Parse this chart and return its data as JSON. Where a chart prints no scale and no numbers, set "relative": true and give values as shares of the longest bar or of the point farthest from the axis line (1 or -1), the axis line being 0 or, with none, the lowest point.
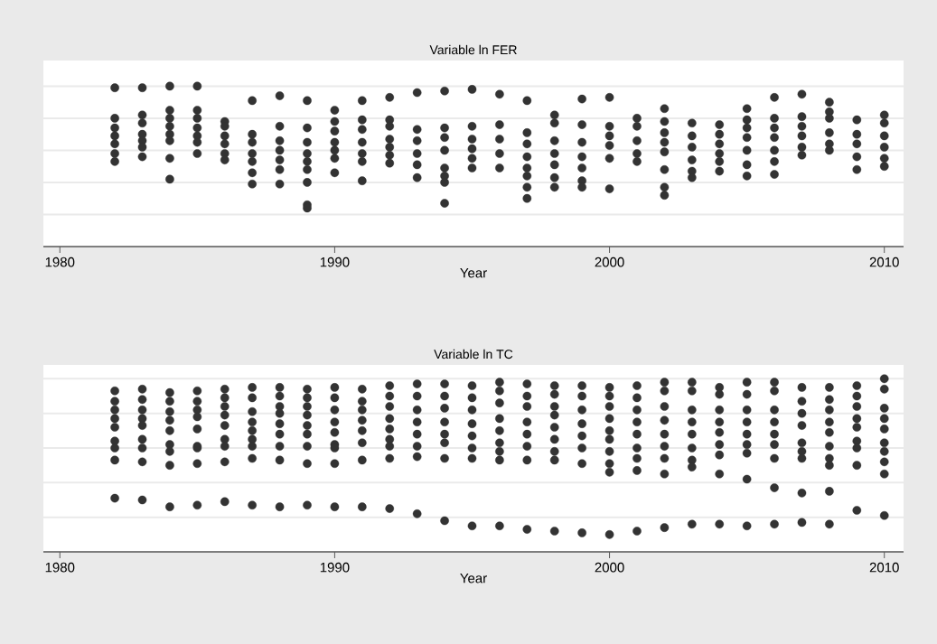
{
  "chart_data": [
    {
      "type": "scatter",
      "title": "Variable ln FER",
      "xlabel": "Year",
      "relative": true,
      "color": "#333333",
      "marker": "circle",
      "grid": "y",
      "xlim": [
        1979.4,
        2010.7
      ],
      "xticks": [
        1980,
        1990,
        2000,
        2010
      ],
      "x": [
        1982,
        1982,
        1982,
        1982,
        1982,
        1982,
        1982,
        1983,
        1983,
        1983,
        1983,
        1983,
        1983,
        1983,
        1984,
        1984,
        1984,
        1984,
        1984,
        1984,
        1984,
        1984,
        1985,
        1985,
        1985,
        1985,
        1985,
        1985,
        1985,
        1986,
        1986,
        1986,
        1986,
        1986,
        1986,
        1987,
        1987,
        1987,
        1987,
        1987,
        1987,
        1987,
        1988,
        1988,
        1988,
        1988,
        1988,
        1988,
        1988,
        1989,
        1989,
        1989,
        1989,
        1989,
        1989,
        1989,
        1989,
        1989,
        1990,
        1990,
        1990,
        1990,
        1990,
        1990,
        1990,
        1991,
        1991,
        1991,
        1991,
        1991,
        1991,
        1991,
        1992,
        1992,
        1992,
        1992,
        1992,
        1992,
        1992,
        1993,
        1993,
        1993,
        1993,
        1993,
        1993,
        1994,
        1994,
        1994,
        1994,
        1994,
        1994,
        1994,
        1994,
        1995,
        1995,
        1995,
        1995,
        1995,
        1995,
        1996,
        1996,
        1996,
        1996,
        1996,
        1997,
        1997,
        1997,
        1997,
        1997,
        1997,
        1997,
        1997,
        1998,
        1998,
        1998,
        1998,
        1998,
        1998,
        1998,
        1999,
        1999,
        1999,
        1999,
        1999,
        1999,
        1999,
        2000,
        2000,
        2000,
        2000,
        2000,
        2000,
        2001,
        2001,
        2001,
        2001,
        2001,
        2002,
        2002,
        2002,
        2002,
        2002,
        2002,
        2002,
        2002,
        2003,
        2003,
        2003,
        2003,
        2003,
        2003,
        2004,
        2004,
        2004,
        2004,
        2004,
        2004,
        2005,
        2005,
        2005,
        2005,
        2005,
        2005,
        2005,
        2006,
        2006,
        2006,
        2006,
        2006,
        2006,
        2006,
        2007,
        2007,
        2007,
        2007,
        2007,
        2007,
        2008,
        2008,
        2008,
        2008,
        2008,
        2008,
        2009,
        2009,
        2009,
        2009,
        2009,
        2010,
        2010,
        2010,
        2010,
        2010,
        2010
      ],
      "values": [
        0.99,
        0.8,
        0.74,
        0.69,
        0.64,
        0.58,
        0.53,
        0.99,
        0.82,
        0.77,
        0.7,
        0.66,
        0.62,
        0.56,
        1.0,
        0.85,
        0.8,
        0.75,
        0.7,
        0.66,
        0.55,
        0.42,
        1.0,
        0.85,
        0.8,
        0.74,
        0.69,
        0.65,
        0.58,
        0.78,
        0.75,
        0.69,
        0.64,
        0.58,
        0.54,
        0.91,
        0.7,
        0.65,
        0.58,
        0.53,
        0.46,
        0.39,
        0.94,
        0.75,
        0.66,
        0.6,
        0.54,
        0.48,
        0.39,
        0.91,
        0.74,
        0.65,
        0.58,
        0.53,
        0.48,
        0.4,
        0.26,
        0.24,
        0.85,
        0.78,
        0.72,
        0.65,
        0.6,
        0.55,
        0.46,
        0.91,
        0.79,
        0.73,
        0.65,
        0.58,
        0.53,
        0.41,
        0.93,
        0.79,
        0.75,
        0.67,
        0.62,
        0.57,
        0.52,
        0.96,
        0.73,
        0.66,
        0.58,
        0.51,
        0.43,
        0.97,
        0.74,
        0.68,
        0.6,
        0.49,
        0.44,
        0.4,
        0.27,
        0.98,
        0.75,
        0.67,
        0.61,
        0.55,
        0.49,
        0.95,
        0.76,
        0.67,
        0.58,
        0.49,
        0.91,
        0.71,
        0.64,
        0.56,
        0.49,
        0.44,
        0.37,
        0.3,
        0.82,
        0.77,
        0.66,
        0.58,
        0.51,
        0.43,
        0.37,
        0.92,
        0.76,
        0.65,
        0.56,
        0.49,
        0.41,
        0.37,
        0.93,
        0.75,
        0.69,
        0.63,
        0.55,
        0.36,
        0.8,
        0.75,
        0.66,
        0.58,
        0.53,
        0.86,
        0.78,
        0.71,
        0.65,
        0.59,
        0.48,
        0.37,
        0.32,
        0.77,
        0.69,
        0.62,
        0.54,
        0.47,
        0.43,
        0.76,
        0.7,
        0.64,
        0.58,
        0.53,
        0.47,
        0.86,
        0.79,
        0.74,
        0.68,
        0.6,
        0.51,
        0.44,
        0.93,
        0.8,
        0.74,
        0.68,
        0.6,
        0.53,
        0.45,
        0.95,
        0.81,
        0.75,
        0.69,
        0.62,
        0.57,
        0.9,
        0.84,
        0.8,
        0.71,
        0.64,
        0.6,
        0.79,
        0.7,
        0.64,
        0.56,
        0.48,
        0.82,
        0.77,
        0.69,
        0.62,
        0.55,
        0.5
      ]
    },
    {
      "type": "scatter",
      "title": "Variable ln TC",
      "xlabel": "Year",
      "relative": true,
      "color": "#333333",
      "marker": "circle",
      "grid": "y",
      "xlim": [
        1979.4,
        2010.7
      ],
      "xticks": [
        1980,
        1990,
        2000,
        2010
      ],
      "x": [
        1982,
        1982,
        1982,
        1982,
        1982,
        1982,
        1982,
        1982,
        1982,
        1983,
        1983,
        1983,
        1983,
        1983,
        1983,
        1983,
        1983,
        1983,
        1984,
        1984,
        1984,
        1984,
        1984,
        1984,
        1984,
        1984,
        1984,
        1985,
        1985,
        1985,
        1985,
        1985,
        1985,
        1985,
        1985,
        1985,
        1986,
        1986,
        1986,
        1986,
        1986,
        1986,
        1986,
        1986,
        1986,
        1987,
        1987,
        1987,
        1987,
        1987,
        1987,
        1987,
        1987,
        1987,
        1988,
        1988,
        1988,
        1988,
        1988,
        1988,
        1988,
        1988,
        1988,
        1989,
        1989,
        1989,
        1989,
        1989,
        1989,
        1989,
        1989,
        1989,
        1990,
        1990,
        1990,
        1990,
        1990,
        1990,
        1990,
        1990,
        1990,
        1991,
        1991,
        1991,
        1991,
        1991,
        1991,
        1991,
        1991,
        1992,
        1992,
        1992,
        1992,
        1992,
        1992,
        1992,
        1992,
        1992,
        1993,
        1993,
        1993,
        1993,
        1993,
        1993,
        1993,
        1993,
        1994,
        1994,
        1994,
        1994,
        1994,
        1994,
        1994,
        1994,
        1995,
        1995,
        1995,
        1995,
        1995,
        1995,
        1995,
        1995,
        1996,
        1996,
        1996,
        1996,
        1996,
        1996,
        1996,
        1996,
        1996,
        1997,
        1997,
        1997,
        1997,
        1997,
        1997,
        1997,
        1997,
        1998,
        1998,
        1998,
        1998,
        1998,
        1998,
        1998,
        1998,
        1998,
        1999,
        1999,
        1999,
        1999,
        1999,
        1999,
        1999,
        1999,
        2000,
        2000,
        2000,
        2000,
        2000,
        2000,
        2000,
        2000,
        2000,
        2000,
        2001,
        2001,
        2001,
        2001,
        2001,
        2001,
        2001,
        2001,
        2001,
        2002,
        2002,
        2002,
        2002,
        2002,
        2002,
        2002,
        2002,
        2002,
        2003,
        2003,
        2003,
        2003,
        2003,
        2003,
        2003,
        2003,
        2003,
        2004,
        2004,
        2004,
        2004,
        2004,
        2004,
        2004,
        2004,
        2004,
        2005,
        2005,
        2005,
        2005,
        2005,
        2005,
        2005,
        2005,
        2005,
        2006,
        2006,
        2006,
        2006,
        2006,
        2006,
        2006,
        2006,
        2006,
        2007,
        2007,
        2007,
        2007,
        2007,
        2007,
        2007,
        2007,
        2007,
        2008,
        2008,
        2008,
        2008,
        2008,
        2008,
        2008,
        2008,
        2008,
        2008,
        2009,
        2009,
        2009,
        2009,
        2009,
        2009,
        2009,
        2009,
        2009,
        2010,
        2010,
        2010,
        2010,
        2010,
        2010,
        2010,
        2010,
        2010,
        2010
      ],
      "values": [
        0.93,
        0.87,
        0.82,
        0.77,
        0.72,
        0.64,
        0.6,
        0.53,
        0.31,
        0.94,
        0.88,
        0.82,
        0.77,
        0.73,
        0.65,
        0.6,
        0.52,
        0.3,
        0.92,
        0.87,
        0.81,
        0.76,
        0.7,
        0.62,
        0.58,
        0.5,
        0.26,
        0.93,
        0.87,
        0.82,
        0.78,
        0.71,
        0.61,
        0.6,
        0.51,
        0.27,
        0.94,
        0.89,
        0.84,
        0.79,
        0.73,
        0.65,
        0.61,
        0.52,
        0.29,
        0.95,
        0.89,
        0.81,
        0.75,
        0.7,
        0.65,
        0.61,
        0.54,
        0.27,
        0.95,
        0.9,
        0.84,
        0.8,
        0.74,
        0.68,
        0.61,
        0.53,
        0.26,
        0.94,
        0.89,
        0.84,
        0.79,
        0.73,
        0.68,
        0.61,
        0.51,
        0.27,
        0.95,
        0.89,
        0.82,
        0.75,
        0.69,
        0.62,
        0.6,
        0.51,
        0.26,
        0.94,
        0.87,
        0.82,
        0.76,
        0.7,
        0.63,
        0.53,
        0.26,
        0.96,
        0.9,
        0.84,
        0.77,
        0.71,
        0.65,
        0.61,
        0.54,
        0.25,
        0.97,
        0.9,
        0.82,
        0.75,
        0.68,
        0.61,
        0.55,
        0.22,
        0.97,
        0.9,
        0.83,
        0.75,
        0.68,
        0.63,
        0.54,
        0.18,
        0.96,
        0.89,
        0.82,
        0.74,
        0.67,
        0.6,
        0.54,
        0.15,
        0.98,
        0.93,
        0.86,
        0.77,
        0.7,
        0.63,
        0.58,
        0.53,
        0.15,
        0.97,
        0.9,
        0.84,
        0.75,
        0.68,
        0.61,
        0.53,
        0.13,
        0.96,
        0.91,
        0.84,
        0.79,
        0.72,
        0.65,
        0.58,
        0.53,
        0.12,
        0.96,
        0.9,
        0.82,
        0.74,
        0.67,
        0.6,
        0.51,
        0.11,
        0.95,
        0.9,
        0.84,
        0.77,
        0.7,
        0.65,
        0.58,
        0.51,
        0.46,
        0.1,
        0.96,
        0.89,
        0.82,
        0.75,
        0.68,
        0.6,
        0.54,
        0.47,
        0.12,
        0.98,
        0.93,
        0.84,
        0.76,
        0.68,
        0.61,
        0.54,
        0.45,
        0.14,
        0.98,
        0.93,
        0.82,
        0.75,
        0.68,
        0.6,
        0.53,
        0.49,
        0.16,
        0.95,
        0.91,
        0.82,
        0.75,
        0.69,
        0.62,
        0.56,
        0.45,
        0.16,
        0.98,
        0.91,
        0.82,
        0.75,
        0.68,
        0.62,
        0.57,
        0.42,
        0.15,
        0.98,
        0.93,
        0.82,
        0.75,
        0.68,
        0.62,
        0.54,
        0.37,
        0.16,
        0.95,
        0.87,
        0.8,
        0.73,
        0.63,
        0.58,
        0.54,
        0.34,
        0.17,
        0.95,
        0.88,
        0.82,
        0.75,
        0.69,
        0.61,
        0.54,
        0.5,
        0.35,
        0.16,
        0.96,
        0.9,
        0.84,
        0.77,
        0.72,
        0.64,
        0.6,
        0.5,
        0.24,
        1.0,
        0.94,
        0.83,
        0.77,
        0.71,
        0.63,
        0.58,
        0.52,
        0.45,
        0.21
      ]
    }
  ]
}
